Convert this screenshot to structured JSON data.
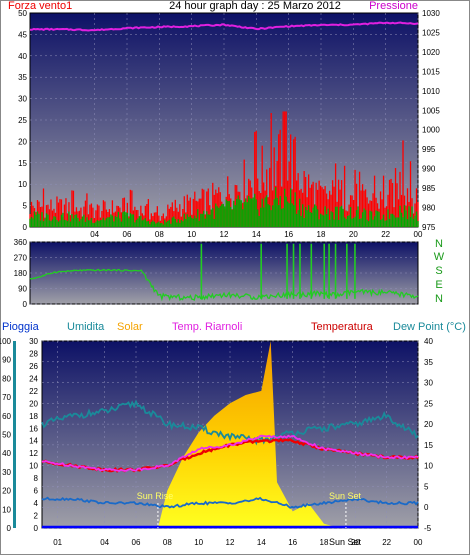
{
  "header": {
    "wind_title": "Forza vento1",
    "graph_title": "24 hour graph day : 25 Marzo 2012",
    "pressure_title": "Pressione"
  },
  "lower_headers": {
    "rain": "Pioggia",
    "humidity": "Umidita",
    "solar": "Solar",
    "temp_riarnoli": "Temp. Riarnoli",
    "temperature": "Temperatura",
    "dew_point": "Dew Point (°C)"
  },
  "annotations": {
    "sun_rise": "Sun Rise",
    "sun_set": "Sun Set"
  },
  "colors": {
    "plot_bg_top": "#0d1166",
    "plot_bg_bottom": "#9a9aa4",
    "wind": "#ff0000",
    "wind_avg": "#00aa00",
    "pressure": "#e020e0",
    "direction": "#22cc22",
    "humidity": "#1a8a9a",
    "solar_top": "#f5a300",
    "solar_bottom": "#ffee00",
    "temp_riarnoli": "#ee30ee",
    "temperature": "#ee0000",
    "dew_point": "#1a6ac8",
    "rain": "#0000ff"
  },
  "chart_data": [
    {
      "type": "line",
      "title": "24 hour graph day : 25 Marzo 2012",
      "x_ticks": [
        "04",
        "06",
        "08",
        "10",
        "12",
        "14",
        "16",
        "18",
        "20",
        "22",
        "00"
      ],
      "left_axis": {
        "label": "Forza vento1",
        "range": [
          0,
          50
        ],
        "ticks": [
          "0",
          "5",
          "10",
          "15",
          "20",
          "25",
          "30",
          "35",
          "40",
          "45",
          "50"
        ]
      },
      "right_axis": {
        "label": "Pressione",
        "range": [
          975,
          1030
        ],
        "ticks": [
          "975",
          "980",
          "985",
          "990",
          "995",
          "1000",
          "1005",
          "1010",
          "1015",
          "1020",
          "1025",
          "1030"
        ]
      },
      "series": [
        {
          "name": "Pressione",
          "axis": "right",
          "x": [
            0,
            2,
            4,
            6,
            8,
            10,
            12,
            14,
            16,
            18,
            20,
            22,
            24
          ],
          "values": [
            1025.8,
            1025.8,
            1025.6,
            1026.1,
            1026.4,
            1026.6,
            1027.0,
            1025.9,
            1026.6,
            1026.9,
            1027.0,
            1027.5,
            1027.3
          ]
        },
        {
          "name": "Forza vento1 (max)",
          "axis": "left",
          "x": [
            0,
            2,
            4,
            6,
            7,
            8,
            9,
            10,
            11,
            12,
            13,
            14,
            15,
            16,
            17,
            18,
            19,
            20,
            21,
            22,
            23,
            24
          ],
          "values": [
            6,
            6,
            5,
            6,
            5,
            3,
            6,
            7,
            8,
            10,
            13,
            15,
            18,
            22,
            13,
            9,
            10,
            9,
            8,
            8,
            14,
            7
          ]
        },
        {
          "name": "Forza vento1 (media)",
          "axis": "left",
          "x": [
            0,
            2,
            4,
            6,
            7,
            8,
            9,
            10,
            11,
            12,
            13,
            14,
            15,
            16,
            17,
            18,
            19,
            20,
            21,
            22,
            23,
            24
          ],
          "values": [
            3,
            3,
            2,
            3,
            2,
            1,
            2,
            3,
            4,
            5,
            6,
            6,
            7,
            8,
            5,
            4,
            4,
            4,
            3,
            3,
            5,
            3
          ]
        }
      ]
    },
    {
      "type": "line",
      "right_labels": [
        "N",
        "W",
        "S",
        "E",
        "N"
      ],
      "left_axis": {
        "range": [
          0,
          360
        ],
        "ticks": [
          "0",
          "90",
          "180",
          "270",
          "360"
        ]
      },
      "series": [
        {
          "name": "Direzione",
          "x": [
            0,
            0.7,
            1.5,
            3,
            5,
            6.9,
            7.2,
            8,
            10,
            12,
            14,
            16,
            18,
            19,
            20,
            22,
            24
          ],
          "values": [
            145,
            160,
            185,
            195,
            197,
            193,
            150,
            45,
            35,
            55,
            40,
            55,
            60,
            50,
            70,
            65,
            45
          ]
        }
      ]
    },
    {
      "type": "area",
      "x_ticks": [
        "01",
        "04",
        "06",
        "08",
        "10",
        "12",
        "14",
        "16",
        "18",
        "20",
        "22",
        "00"
      ],
      "axes": {
        "rain": {
          "label": "Pioggia",
          "range": [
            0,
            100
          ],
          "ticks": [
            "0",
            "10",
            "20",
            "30",
            "40",
            "50",
            "60",
            "70",
            "80",
            "90",
            "100"
          ]
        },
        "humidity": {
          "label": "Umidita",
          "range": [
            0,
            30
          ],
          "ticks": [
            "0",
            "2",
            "4",
            "6",
            "8",
            "10",
            "12",
            "14",
            "16",
            "18",
            "20",
            "22",
            "24",
            "26",
            "28",
            "30"
          ]
        },
        "temperature": {
          "label": "Temperatura",
          "range": [
            -5,
            40
          ],
          "ticks": [
            "-5",
            "0",
            "5",
            "10",
            "15",
            "20",
            "25",
            "30",
            "35",
            "40"
          ]
        }
      },
      "series": [
        {
          "name": "Solar",
          "axis": "temperature",
          "x": [
            7.4,
            8,
            9,
            10,
            11,
            12,
            13,
            14,
            14.6,
            15,
            16,
            17,
            18,
            19
          ],
          "values": [
            -5,
            4,
            12,
            18,
            22,
            25,
            27,
            28,
            40,
            6,
            -1,
            1,
            -4,
            -5
          ]
        },
        {
          "name": "Umidita",
          "axis": "temperature",
          "x": [
            0,
            2,
            4,
            6,
            8,
            10,
            12,
            14,
            16,
            18,
            20,
            22,
            24
          ],
          "values": [
            20,
            22,
            23,
            25,
            20,
            19,
            17,
            16,
            18,
            19,
            20,
            22,
            17
          ]
        },
        {
          "name": "Temp. Riarnoli",
          "axis": "temperature",
          "x": [
            0,
            2,
            4,
            6,
            8,
            10,
            12,
            14,
            16,
            18,
            20,
            22,
            24
          ],
          "values": [
            11,
            10,
            9,
            9,
            10,
            14,
            15,
            17,
            17,
            14,
            13,
            12,
            12
          ]
        },
        {
          "name": "Temperatura",
          "axis": "temperature",
          "x": [
            0,
            2,
            4,
            6,
            8,
            10,
            12,
            14,
            16,
            18,
            20,
            22,
            24
          ],
          "values": [
            11,
            10,
            9,
            9,
            10,
            13,
            15,
            16,
            16,
            14,
            13,
            12,
            12
          ]
        },
        {
          "name": "Dew Point (°C)",
          "axis": "temperature",
          "x": [
            0,
            2,
            4,
            6,
            8,
            10,
            12,
            14,
            16,
            18,
            20,
            22,
            24
          ],
          "values": [
            2,
            2,
            1,
            1,
            0,
            1,
            1,
            2,
            0,
            1,
            2,
            1,
            1
          ]
        },
        {
          "name": "Pioggia",
          "axis": "rain",
          "x": [
            0,
            24
          ],
          "values": [
            0,
            0
          ]
        }
      ]
    }
  ]
}
